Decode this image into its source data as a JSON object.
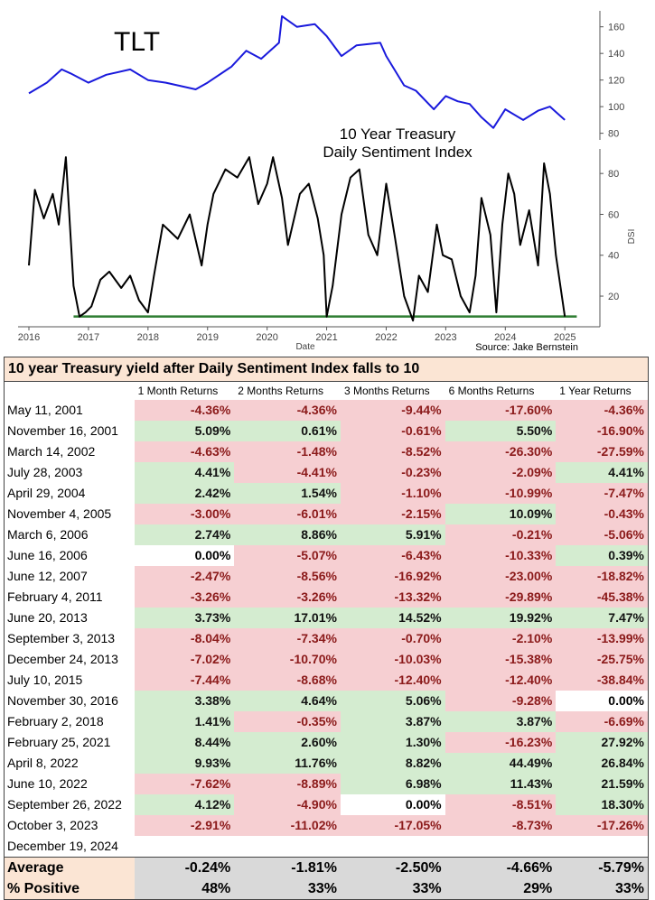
{
  "colors": {
    "tlt_line": "#1a1adc",
    "dsi_line": "#000000",
    "threshold_line": "#2e7d32",
    "positive_bg": "#d4ecd0",
    "negative_bg": "#f6cfd2",
    "header_bg": "#fbe5d4",
    "footer_bg": "#d9d9d9"
  },
  "chart_data": [
    {
      "type": "line",
      "title": "TLT",
      "xlabel": "",
      "ylabel": "",
      "xlim": [
        2016,
        2025.3
      ],
      "ylim": [
        75,
        172
      ],
      "yticks": [
        80,
        100,
        120,
        140,
        160
      ],
      "series": [
        {
          "name": "TLT",
          "x": [
            2016.0,
            2016.3,
            2016.55,
            2016.7,
            2017.0,
            2017.3,
            2017.7,
            2018.0,
            2018.3,
            2018.8,
            2019.0,
            2019.4,
            2019.65,
            2019.9,
            2020.2,
            2020.25,
            2020.5,
            2020.8,
            2021.0,
            2021.25,
            2021.5,
            2021.9,
            2022.0,
            2022.3,
            2022.5,
            2022.8,
            2023.0,
            2023.2,
            2023.4,
            2023.6,
            2023.8,
            2024.0,
            2024.3,
            2024.55,
            2024.75,
            2024.9,
            2025.0
          ],
          "y": [
            110,
            118,
            128,
            125,
            118,
            124,
            128,
            120,
            118,
            113,
            118,
            130,
            142,
            136,
            148,
            168,
            160,
            162,
            153,
            138,
            146,
            148,
            138,
            116,
            112,
            98,
            108,
            104,
            102,
            92,
            84,
            98,
            90,
            97,
            100,
            94,
            90
          ]
        }
      ]
    },
    {
      "type": "line",
      "title": "10 Year Treasury Daily Sentiment Index",
      "xlabel": "Date",
      "ylabel": "DSI",
      "annotation": "Source: Jake Bernstein",
      "xlim": [
        2016,
        2025.3
      ],
      "ylim": [
        5,
        92
      ],
      "yticks": [
        20,
        40,
        60,
        80
      ],
      "xticks": [
        "2016",
        "2017",
        "2018",
        "2019",
        "2020",
        "2021",
        "2022",
        "2023",
        "2024",
        "2025"
      ],
      "threshold": 10,
      "series": [
        {
          "name": "DSI",
          "x": [
            2016.0,
            2016.1,
            2016.25,
            2016.4,
            2016.5,
            2016.62,
            2016.75,
            2016.85,
            2016.95,
            2017.05,
            2017.2,
            2017.35,
            2017.55,
            2017.7,
            2017.85,
            2018.0,
            2018.1,
            2018.25,
            2018.5,
            2018.7,
            2018.9,
            2019.0,
            2019.1,
            2019.3,
            2019.5,
            2019.7,
            2019.85,
            2020.0,
            2020.1,
            2020.25,
            2020.35,
            2020.55,
            2020.7,
            2020.85,
            2020.95,
            2021.0,
            2021.1,
            2021.25,
            2021.4,
            2021.55,
            2021.7,
            2021.85,
            2022.0,
            2022.15,
            2022.3,
            2022.45,
            2022.55,
            2022.7,
            2022.85,
            2022.95,
            2023.1,
            2023.25,
            2023.4,
            2023.5,
            2023.6,
            2023.75,
            2023.85,
            2023.95,
            2024.05,
            2024.15,
            2024.25,
            2024.4,
            2024.55,
            2024.65,
            2024.75,
            2024.85,
            2024.95,
            2025.0
          ],
          "y": [
            35,
            72,
            58,
            70,
            55,
            88,
            25,
            10,
            12,
            15,
            28,
            32,
            24,
            30,
            18,
            12,
            30,
            55,
            48,
            60,
            35,
            55,
            70,
            82,
            78,
            88,
            65,
            75,
            88,
            68,
            45,
            70,
            75,
            58,
            40,
            10,
            25,
            60,
            78,
            82,
            50,
            40,
            75,
            48,
            20,
            8,
            30,
            22,
            55,
            40,
            38,
            20,
            12,
            30,
            68,
            50,
            12,
            55,
            80,
            70,
            45,
            62,
            35,
            85,
            70,
            40,
            20,
            10
          ]
        }
      ]
    }
  ],
  "table": {
    "title": "10 year Treasury yield after Daily Sentiment Index falls to 10",
    "headers": [
      "",
      "1 Month Returns",
      "2 Months Returns",
      "3 Months Returns",
      "6 Months Returns",
      "1 Year Returns"
    ],
    "rows": [
      {
        "date": "May 11, 2001",
        "values": [
          "-4.36%",
          "-4.36%",
          "-9.44%",
          "-17.60%",
          "-4.36%"
        ]
      },
      {
        "date": "November 16, 2001",
        "values": [
          "5.09%",
          "0.61%",
          "-0.61%",
          "5.50%",
          "-16.90%"
        ]
      },
      {
        "date": "March 14, 2002",
        "values": [
          "-4.63%",
          "-1.48%",
          "-8.52%",
          "-26.30%",
          "-27.59%"
        ]
      },
      {
        "date": "July 28, 2003",
        "values": [
          "4.41%",
          "-4.41%",
          "-0.23%",
          "-2.09%",
          "4.41%"
        ]
      },
      {
        "date": "April 29, 2004",
        "values": [
          "2.42%",
          "1.54%",
          "-1.10%",
          "-10.99%",
          "-7.47%"
        ]
      },
      {
        "date": "November 4, 2005",
        "values": [
          "-3.00%",
          "-6.01%",
          "-2.15%",
          "10.09%",
          "-0.43%"
        ]
      },
      {
        "date": "March 6, 2006",
        "values": [
          "2.74%",
          "8.86%",
          "5.91%",
          "-0.21%",
          "-5.06%"
        ]
      },
      {
        "date": "June 16, 2006",
        "values": [
          "0.00%",
          "-5.07%",
          "-6.43%",
          "-10.33%",
          "0.39%"
        ]
      },
      {
        "date": "June 12, 2007",
        "values": [
          "-2.47%",
          "-8.56%",
          "-16.92%",
          "-23.00%",
          "-18.82%"
        ]
      },
      {
        "date": "February 4, 2011",
        "values": [
          "-3.26%",
          "-3.26%",
          "-13.32%",
          "-29.89%",
          "-45.38%"
        ]
      },
      {
        "date": "June 20, 2013",
        "values": [
          "3.73%",
          "17.01%",
          "14.52%",
          "19.92%",
          "7.47%"
        ]
      },
      {
        "date": "September 3, 2013",
        "values": [
          "-8.04%",
          "-7.34%",
          "-0.70%",
          "-2.10%",
          "-13.99%"
        ]
      },
      {
        "date": "December 24, 2013",
        "values": [
          "-7.02%",
          "-10.70%",
          "-10.03%",
          "-15.38%",
          "-25.75%"
        ]
      },
      {
        "date": "July 10, 2015",
        "values": [
          "-7.44%",
          "-8.68%",
          "-12.40%",
          "-12.40%",
          "-38.84%"
        ]
      },
      {
        "date": "November 30, 2016",
        "values": [
          "3.38%",
          "4.64%",
          "5.06%",
          "-9.28%",
          "0.00%"
        ]
      },
      {
        "date": "February 2, 2018",
        "values": [
          "1.41%",
          "-0.35%",
          "3.87%",
          "3.87%",
          "-6.69%"
        ]
      },
      {
        "date": "February 25, 2021",
        "values": [
          "8.44%",
          "2.60%",
          "1.30%",
          "-16.23%",
          "27.92%"
        ]
      },
      {
        "date": "April 8, 2022",
        "values": [
          "9.93%",
          "11.76%",
          "8.82%",
          "44.49%",
          "26.84%"
        ]
      },
      {
        "date": "June 10, 2022",
        "values": [
          "-7.62%",
          "-8.89%",
          "6.98%",
          "11.43%",
          "21.59%"
        ]
      },
      {
        "date": "September 26, 2022",
        "values": [
          "4.12%",
          "-4.90%",
          "0.00%",
          "-8.51%",
          "18.30%"
        ]
      },
      {
        "date": "October 3, 2023",
        "values": [
          "-2.91%",
          "-11.02%",
          "-17.05%",
          "-8.73%",
          "-17.26%"
        ]
      },
      {
        "date": "December 19, 2024",
        "values": [
          "",
          "",
          "",
          "",
          ""
        ]
      }
    ],
    "average": {
      "label": "Average",
      "values": [
        "-0.24%",
        "-1.81%",
        "-2.50%",
        "-4.66%",
        "-5.79%"
      ]
    },
    "positive": {
      "label": "% Positive",
      "values": [
        "48%",
        "33%",
        "33%",
        "29%",
        "33%"
      ]
    }
  }
}
